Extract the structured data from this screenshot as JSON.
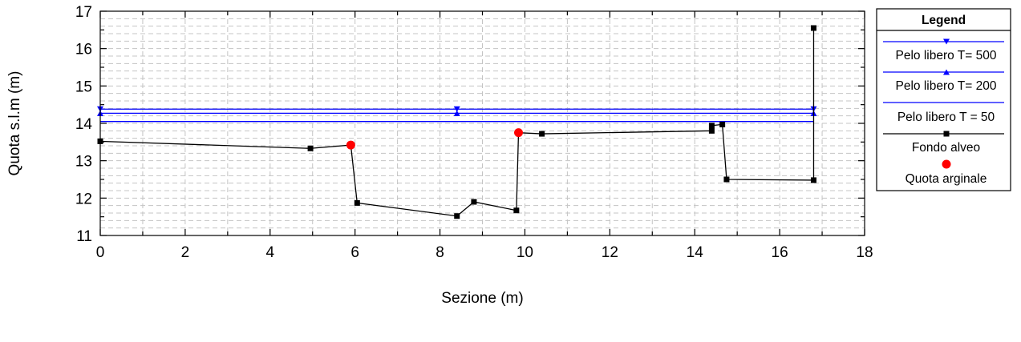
{
  "chart_data": {
    "type": "line",
    "xlabel": "Sezione (m)",
    "ylabel": "Quota s.l.m (m)",
    "xlim": [
      0,
      18
    ],
    "ylim": [
      11,
      17
    ],
    "xticks": [
      0,
      2,
      4,
      6,
      8,
      10,
      12,
      14,
      16,
      18
    ],
    "yticks": [
      11,
      12,
      13,
      14,
      15,
      16,
      17
    ],
    "grid": true,
    "legend_title": "Legend",
    "legend_position": "right",
    "series": [
      {
        "name": "Pelo libero T= 500",
        "color": "#0000ff",
        "marker": "triangle-down",
        "x": [
          0,
          8.4,
          16.8
        ],
        "y": [
          14.38,
          14.38,
          14.38
        ]
      },
      {
        "name": "Pelo libero T= 200",
        "color": "#0000ff",
        "marker": "triangle-up",
        "x": [
          0,
          8.4,
          16.8
        ],
        "y": [
          14.27,
          14.27,
          14.27
        ]
      },
      {
        "name": "Pelo libero T = 50",
        "color": "#0000ff",
        "marker": "none",
        "x": [
          0,
          16.8
        ],
        "y": [
          14.05,
          14.05
        ]
      },
      {
        "name": "Fondo alveo",
        "color": "#000000",
        "marker": "square",
        "x": [
          0,
          4.95,
          5.9,
          6.05,
          8.4,
          8.8,
          9.8,
          9.85,
          10.4,
          14.4,
          14.4,
          14.65,
          14.75,
          16.8,
          16.8
        ],
        "y": [
          13.52,
          13.33,
          13.42,
          11.87,
          11.52,
          11.9,
          11.67,
          13.75,
          13.72,
          13.8,
          13.94,
          13.97,
          12.5,
          12.48,
          16.55
        ]
      },
      {
        "name": "Quota arginale",
        "color": "#ff0000",
        "marker": "circle",
        "x": [
          5.9,
          9.85
        ],
        "y": [
          13.42,
          13.75
        ]
      }
    ]
  }
}
